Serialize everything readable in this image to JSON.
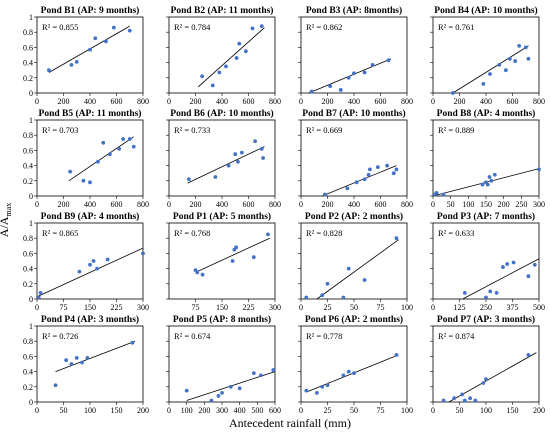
{
  "figure": {
    "ylabel": "A/A",
    "ylabel_sub": "max",
    "xlabel": "Antecedent rainfall (mm)"
  },
  "colors": {
    "point": "#4472c4",
    "trend": "#000000",
    "frame": "#000000",
    "background": "#ffffff"
  },
  "chart_data": [
    {
      "type": "scatter",
      "title": "Pond B1 (AP: 9 months)",
      "r2_label": "R² = 0.855",
      "xlim": [
        0,
        800
      ],
      "ylim": [
        0,
        1
      ],
      "xticks": [
        0,
        200,
        400,
        600,
        800
      ],
      "yticks": [
        0,
        0.2,
        0.4,
        0.6,
        0.8,
        1
      ],
      "show_xticks": true,
      "show_yticks": true,
      "x": [
        90,
        260,
        300,
        400,
        440,
        520,
        580,
        700
      ],
      "y": [
        0.3,
        0.37,
        0.41,
        0.57,
        0.72,
        0.68,
        0.86,
        0.82
      ],
      "trend": [
        [
          90,
          0.27
        ],
        [
          700,
          0.88
        ]
      ]
    },
    {
      "type": "scatter",
      "title": "Pond B2 (AP: 11 months)",
      "r2_label": "R² = 0.784",
      "xlim": [
        0,
        800
      ],
      "ylim": [
        0,
        1
      ],
      "xticks": [
        0,
        200,
        400,
        600,
        800
      ],
      "yticks": [
        0,
        0.2,
        0.4,
        0.6,
        0.8,
        1
      ],
      "show_xticks": true,
      "show_yticks": false,
      "x": [
        250,
        330,
        380,
        430,
        510,
        530,
        580,
        630,
        700
      ],
      "y": [
        0.22,
        0.1,
        0.27,
        0.35,
        0.46,
        0.65,
        0.55,
        0.85,
        0.88
      ],
      "trend": [
        [
          220,
          0.08
        ],
        [
          720,
          0.86
        ]
      ]
    },
    {
      "type": "scatter",
      "title": "Pond B3 (AP: 8months)",
      "r2_label": "R² = 0.862",
      "xlim": [
        0,
        800
      ],
      "ylim": [
        0,
        1
      ],
      "xticks": [
        0,
        200,
        400,
        600,
        800
      ],
      "yticks": [
        0,
        0.2,
        0.4,
        0.6,
        0.8,
        1
      ],
      "show_xticks": true,
      "show_yticks": false,
      "x": [
        80,
        220,
        300,
        360,
        400,
        480,
        540,
        660
      ],
      "y": [
        0.02,
        0.09,
        0.04,
        0.2,
        0.26,
        0.27,
        0.37,
        0.43
      ],
      "trend": [
        [
          60,
          0.0
        ],
        [
          680,
          0.45
        ]
      ]
    },
    {
      "type": "scatter",
      "title": "Pond B4 (AP: 10 months)",
      "r2_label": "R² = 0.761",
      "xlim": [
        0,
        800
      ],
      "ylim": [
        0,
        1
      ],
      "xticks": [
        0,
        200,
        400,
        600,
        800
      ],
      "yticks": [
        0,
        0.2,
        0.4,
        0.6,
        0.8,
        1
      ],
      "show_xticks": true,
      "show_yticks": false,
      "x": [
        150,
        380,
        430,
        500,
        550,
        580,
        620,
        650,
        700,
        720
      ],
      "y": [
        0.0,
        0.12,
        0.25,
        0.37,
        0.3,
        0.45,
        0.42,
        0.62,
        0.6,
        0.45
      ],
      "trend": [
        [
          150,
          0.0
        ],
        [
          720,
          0.62
        ]
      ]
    },
    {
      "type": "scatter",
      "title": "Pond B5 (AP: 11 months)",
      "r2_label": "R² = 0.703",
      "xlim": [
        0,
        800
      ],
      "ylim": [
        0,
        1
      ],
      "xticks": [
        0,
        200,
        400,
        600,
        800
      ],
      "yticks": [
        0,
        0.2,
        0.4,
        0.6,
        0.8,
        1
      ],
      "show_xticks": true,
      "show_yticks": true,
      "x": [
        250,
        350,
        400,
        460,
        500,
        550,
        620,
        650,
        700,
        730
      ],
      "y": [
        0.32,
        0.2,
        0.18,
        0.45,
        0.7,
        0.55,
        0.62,
        0.75,
        0.75,
        0.65
      ],
      "trend": [
        [
          240,
          0.2
        ],
        [
          730,
          0.78
        ]
      ]
    },
    {
      "type": "scatter",
      "title": "Pond B6 (AP: 10 months)",
      "r2_label": "R² = 0.733",
      "xlim": [
        0,
        800
      ],
      "ylim": [
        0,
        1
      ],
      "xticks": [
        0,
        200,
        400,
        600,
        800
      ],
      "yticks": [
        0,
        0.2,
        0.4,
        0.6,
        0.8,
        1
      ],
      "show_xticks": true,
      "show_yticks": false,
      "x": [
        150,
        350,
        450,
        500,
        520,
        550,
        650,
        700,
        710
      ],
      "y": [
        0.22,
        0.25,
        0.4,
        0.55,
        0.45,
        0.57,
        0.72,
        0.62,
        0.5
      ],
      "trend": [
        [
          140,
          0.17
        ],
        [
          720,
          0.65
        ]
      ]
    },
    {
      "type": "scatter",
      "title": "Pond B7 (AP: 10 months)",
      "r2_label": "R² = 0.669",
      "xlim": [
        0,
        800
      ],
      "ylim": [
        0,
        1
      ],
      "xticks": [
        0,
        200,
        400,
        600,
        800
      ],
      "yticks": [
        0,
        0.2,
        0.4,
        0.6,
        0.8,
        1
      ],
      "show_xticks": true,
      "show_yticks": false,
      "x": [
        180,
        350,
        420,
        480,
        510,
        520,
        580,
        650,
        700,
        720
      ],
      "y": [
        0.02,
        0.1,
        0.18,
        0.22,
        0.28,
        0.35,
        0.38,
        0.4,
        0.3,
        0.35
      ],
      "trend": [
        [
          160,
          0.0
        ],
        [
          720,
          0.4
        ]
      ]
    },
    {
      "type": "scatter",
      "title": "Pond B8 (AP: 4 months)",
      "r2_label": "R² = 0.889",
      "xlim": [
        0,
        300
      ],
      "ylim": [
        0,
        1
      ],
      "xticks": [
        0,
        50,
        100,
        150,
        200,
        250,
        300
      ],
      "yticks": [
        0,
        0.2,
        0.4,
        0.6,
        0.8,
        1
      ],
      "show_xticks": true,
      "show_yticks": false,
      "x": [
        5,
        10,
        30,
        140,
        150,
        155,
        160,
        165,
        175,
        300
      ],
      "y": [
        0.02,
        0.04,
        0.02,
        0.15,
        0.18,
        0.15,
        0.25,
        0.2,
        0.28,
        0.35
      ],
      "trend": [
        [
          0,
          0.0
        ],
        [
          300,
          0.36
        ]
      ]
    },
    {
      "type": "scatter",
      "title": "Pond B9 (AP: 4 months)",
      "r2_label": "R² = 0.865",
      "xlim": [
        0,
        300
      ],
      "ylim": [
        0,
        1
      ],
      "xticks": [
        0,
        75,
        150,
        225,
        300
      ],
      "yticks": [
        0,
        0.2,
        0.4,
        0.6,
        0.8,
        1
      ],
      "show_xticks": true,
      "show_yticks": true,
      "x": [
        5,
        10,
        120,
        150,
        160,
        170,
        200,
        300
      ],
      "y": [
        0.02,
        0.08,
        0.36,
        0.45,
        0.5,
        0.4,
        0.52,
        0.6
      ],
      "trend": [
        [
          0,
          0.03
        ],
        [
          300,
          0.67
        ]
      ]
    },
    {
      "type": "scatter",
      "title": "Pond P1 (AP: 5 months)",
      "r2_label": "R² = 0.768",
      "xlim": [
        0,
        300
      ],
      "ylim": [
        0,
        1
      ],
      "xticks": [
        75,
        150,
        225,
        300
      ],
      "yticks": [
        0,
        0.2,
        0.4,
        0.6,
        0.8,
        1
      ],
      "show_xticks": true,
      "show_yticks": false,
      "x": [
        75,
        80,
        95,
        180,
        185,
        190,
        240,
        280
      ],
      "y": [
        0.38,
        0.35,
        0.32,
        0.5,
        0.65,
        0.68,
        0.55,
        0.85
      ],
      "trend": [
        [
          75,
          0.35
        ],
        [
          285,
          0.8
        ]
      ]
    },
    {
      "type": "scatter",
      "title": "Pond P2 (AP: 2 months)",
      "r2_label": "R² = 0.828",
      "xlim": [
        0,
        100
      ],
      "ylim": [
        0,
        1
      ],
      "xticks": [
        0,
        25,
        50,
        75,
        100
      ],
      "yticks": [
        0,
        0.2,
        0.4,
        0.6,
        0.8,
        1
      ],
      "show_xticks": true,
      "show_yticks": false,
      "x": [
        5,
        20,
        25,
        40,
        45,
        60,
        90
      ],
      "y": [
        0.02,
        0.05,
        0.2,
        0.02,
        0.4,
        0.25,
        0.8
      ],
      "trend": [
        [
          15,
          0.0
        ],
        [
          92,
          0.78
        ]
      ]
    },
    {
      "type": "scatter",
      "title": "Pond P3 (AP: 7 months)",
      "r2_label": "R² = 0.633",
      "xlim": [
        0,
        500
      ],
      "ylim": [
        0,
        1
      ],
      "xticks": [
        0,
        125,
        250,
        375,
        500
      ],
      "yticks": [
        0,
        0.2,
        0.4,
        0.6,
        0.8,
        1
      ],
      "show_xticks": true,
      "show_yticks": false,
      "x": [
        150,
        250,
        270,
        300,
        330,
        350,
        380,
        450,
        480
      ],
      "y": [
        0.08,
        0.02,
        0.1,
        0.08,
        0.42,
        0.46,
        0.48,
        0.3,
        0.45
      ],
      "trend": [
        [
          140,
          0.0
        ],
        [
          500,
          0.53
        ]
      ]
    },
    {
      "type": "scatter",
      "title": "Pond P4 (AP: 3 months)",
      "r2_label": "R² = 0.726",
      "xlim": [
        0,
        200
      ],
      "ylim": [
        0,
        1
      ],
      "xticks": [
        0,
        50,
        100,
        150,
        200
      ],
      "yticks": [
        0,
        0.2,
        0.4,
        0.6,
        0.8,
        1
      ],
      "show_xticks": true,
      "show_yticks": true,
      "x": [
        35,
        55,
        65,
        75,
        85,
        95,
        180
      ],
      "y": [
        0.22,
        0.55,
        0.5,
        0.58,
        0.52,
        0.58,
        0.78
      ],
      "trend": [
        [
          35,
          0.4
        ],
        [
          185,
          0.8
        ]
      ]
    },
    {
      "type": "scatter",
      "title": "Pond P5 (AP: 8 months)",
      "r2_label": "R² = 0.674",
      "xlim": [
        0,
        600
      ],
      "ylim": [
        0,
        1
      ],
      "xticks": [
        0,
        100,
        200,
        300,
        400,
        500,
        600
      ],
      "yticks": [
        0,
        0.2,
        0.4,
        0.6,
        0.8,
        1
      ],
      "show_xticks": true,
      "show_yticks": false,
      "x": [
        100,
        240,
        280,
        300,
        350,
        400,
        480,
        520,
        590
      ],
      "y": [
        0.15,
        0.02,
        0.08,
        0.12,
        0.2,
        0.18,
        0.38,
        0.35,
        0.42
      ],
      "trend": [
        [
          100,
          0.02
        ],
        [
          600,
          0.4
        ]
      ]
    },
    {
      "type": "scatter",
      "title": "Pond P6 (AP: 2 months)",
      "r2_label": "R² = 0.778",
      "xlim": [
        0,
        100
      ],
      "ylim": [
        0,
        1
      ],
      "xticks": [
        0,
        25,
        50,
        75,
        100
      ],
      "yticks": [
        0,
        0.2,
        0.4,
        0.6,
        0.8,
        1
      ],
      "show_xticks": true,
      "show_yticks": false,
      "x": [
        5,
        15,
        20,
        25,
        40,
        45,
        50,
        90
      ],
      "y": [
        0.15,
        0.12,
        0.2,
        0.22,
        0.35,
        0.4,
        0.38,
        0.62
      ],
      "trend": [
        [
          5,
          0.13
        ],
        [
          92,
          0.62
        ]
      ]
    },
    {
      "type": "scatter",
      "title": "Pond P7 (AP: 3 months)",
      "r2_label": "R² = 0.874",
      "xlim": [
        0,
        200
      ],
      "ylim": [
        0,
        1
      ],
      "xticks": [
        0,
        50,
        100,
        150,
        200
      ],
      "yticks": [
        0,
        0.2,
        0.4,
        0.6,
        0.8,
        1
      ],
      "show_xticks": true,
      "show_yticks": false,
      "x": [
        20,
        40,
        55,
        60,
        70,
        80,
        95,
        100,
        180
      ],
      "y": [
        0.02,
        0.05,
        0.1,
        0.02,
        0.05,
        0.02,
        0.25,
        0.3,
        0.62
      ],
      "trend": [
        [
          30,
          0.0
        ],
        [
          195,
          0.65
        ]
      ]
    }
  ]
}
